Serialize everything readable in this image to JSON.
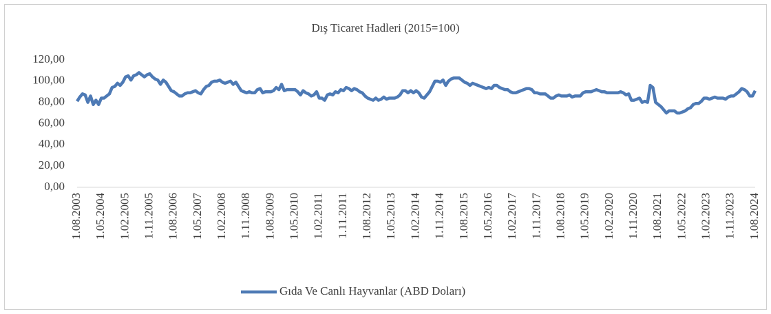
{
  "chart_data": {
    "type": "line",
    "title": "Dış Ticaret Hadleri (2015=100)",
    "categories": [
      "1.08.2003",
      null,
      null,
      null,
      null,
      null,
      null,
      null,
      null,
      "1.05.2004",
      null,
      null,
      null,
      null,
      null,
      null,
      null,
      null,
      "1.02.2005",
      null,
      null,
      null,
      null,
      null,
      null,
      null,
      null,
      "1.11.2005",
      null,
      null,
      null,
      null,
      null,
      null,
      null,
      null,
      "1.08.2006",
      null,
      null,
      null,
      null,
      null,
      null,
      null,
      null,
      "1.05.2007",
      null,
      null,
      null,
      null,
      null,
      null,
      null,
      null,
      "1.02.2008",
      null,
      null,
      null,
      null,
      null,
      null,
      null,
      null,
      "1.11.2008",
      null,
      null,
      null,
      null,
      null,
      null,
      null,
      null,
      "1.08.2009",
      null,
      null,
      null,
      null,
      null,
      null,
      null,
      null,
      "1.05.2010",
      null,
      null,
      null,
      null,
      null,
      null,
      null,
      null,
      "1.02.2011",
      null,
      null,
      null,
      null,
      null,
      null,
      null,
      null,
      "1.11.2011",
      null,
      null,
      null,
      null,
      null,
      null,
      null,
      null,
      "1.08.2012",
      null,
      null,
      null,
      null,
      null,
      null,
      null,
      null,
      "1.05.2013",
      null,
      null,
      null,
      null,
      null,
      null,
      null,
      null,
      "1.02.2014",
      null,
      null,
      null,
      null,
      null,
      null,
      null,
      null,
      "1.11.2014",
      null,
      null,
      null,
      null,
      null,
      null,
      null,
      null,
      "1.08.2015",
      null,
      null,
      null,
      null,
      null,
      null,
      null,
      null,
      "1.05.2016",
      null,
      null,
      null,
      null,
      null,
      null,
      null,
      null,
      "1.02.2017",
      null,
      null,
      null,
      null,
      null,
      null,
      null,
      null,
      "1.11.2017",
      null,
      null,
      null,
      null,
      null,
      null,
      null,
      null,
      "1.08.2018",
      null,
      null,
      null,
      null,
      null,
      null,
      null,
      null,
      "1.05.2019",
      null,
      null,
      null,
      null,
      null,
      null,
      null,
      null,
      "1.02.2020",
      null,
      null,
      null,
      null,
      null,
      null,
      null,
      null,
      "1.11.2020",
      null,
      null,
      null,
      null,
      null,
      null,
      null,
      null,
      "1.08.2021",
      null,
      null,
      null,
      null,
      null,
      null,
      null,
      null,
      "1.05.2022",
      null,
      null,
      null,
      null,
      null,
      null,
      null,
      null,
      "1.02.2023",
      null,
      null,
      null,
      null,
      null,
      null,
      null,
      null,
      "1.11.2023",
      null,
      null,
      null,
      null,
      null,
      null,
      null,
      null,
      "1.08.2024"
    ],
    "series": [
      {
        "name": "Gıda Ve Canlı Hayvanlar (ABD Doları)",
        "color": "#4e7ab5",
        "values": [
          81,
          85,
          88,
          87,
          80,
          86,
          78,
          82,
          78,
          84,
          84,
          86,
          88,
          94,
          95,
          98,
          96,
          99,
          104,
          105,
          101,
          105,
          106,
          108,
          106,
          104,
          106,
          107,
          104,
          102,
          101,
          97,
          101,
          99,
          95,
          91,
          90,
          88,
          86,
          86,
          88,
          89,
          89,
          90,
          91,
          89,
          88,
          92,
          95,
          96,
          99,
          100,
          100,
          101,
          99,
          98,
          99,
          100,
          97,
          99,
          95,
          91,
          90,
          89,
          90,
          89,
          89,
          92,
          93,
          89,
          90,
          90,
          90,
          91,
          94,
          92,
          97,
          91,
          92,
          92,
          92,
          92,
          90,
          87,
          91,
          89,
          88,
          86,
          87,
          90,
          84,
          84,
          82,
          87,
          88,
          87,
          90,
          89,
          92,
          91,
          94,
          93,
          91,
          93,
          92,
          90,
          89,
          86,
          84,
          83,
          82,
          84,
          82,
          83,
          85,
          83,
          84,
          84,
          84,
          85,
          87,
          91,
          91,
          89,
          91,
          89,
          91,
          89,
          85,
          84,
          87,
          90,
          95,
          100,
          100,
          99,
          101,
          96,
          100,
          102,
          103,
          103,
          103,
          101,
          99,
          98,
          96,
          98,
          97,
          96,
          95,
          94,
          93,
          94,
          93,
          96,
          96,
          94,
          93,
          92,
          92,
          90,
          89,
          89,
          90,
          91,
          92,
          93,
          93,
          92,
          89,
          89,
          88,
          88,
          88,
          86,
          84,
          84,
          86,
          87,
          86,
          86,
          86,
          87,
          85,
          86,
          86,
          86,
          89,
          90,
          90,
          90,
          91,
          92,
          91,
          90,
          90,
          89,
          89,
          89,
          89,
          89,
          90,
          89,
          87,
          88,
          82,
          82,
          83,
          84,
          80,
          81,
          80,
          96,
          94,
          80,
          78,
          76,
          73,
          70,
          72,
          72,
          72,
          70,
          70,
          71,
          72,
          74,
          75,
          78,
          79,
          79,
          81,
          84,
          84,
          83,
          84,
          85,
          84,
          84,
          84,
          83,
          85,
          86,
          86,
          88,
          90,
          93,
          92,
          90,
          86,
          86,
          91
        ]
      }
    ],
    "ylim": [
      0,
      120
    ],
    "yticks": [
      {
        "value": 0,
        "label": "0,00"
      },
      {
        "value": 20,
        "label": "20,00"
      },
      {
        "value": 40,
        "label": "40,00"
      },
      {
        "value": 60,
        "label": "60,00"
      },
      {
        "value": 80,
        "label": "80,00"
      },
      {
        "value": 100,
        "label": "100,00"
      },
      {
        "value": 120,
        "label": "120,00"
      }
    ],
    "grid": false,
    "legend": "bottom"
  }
}
